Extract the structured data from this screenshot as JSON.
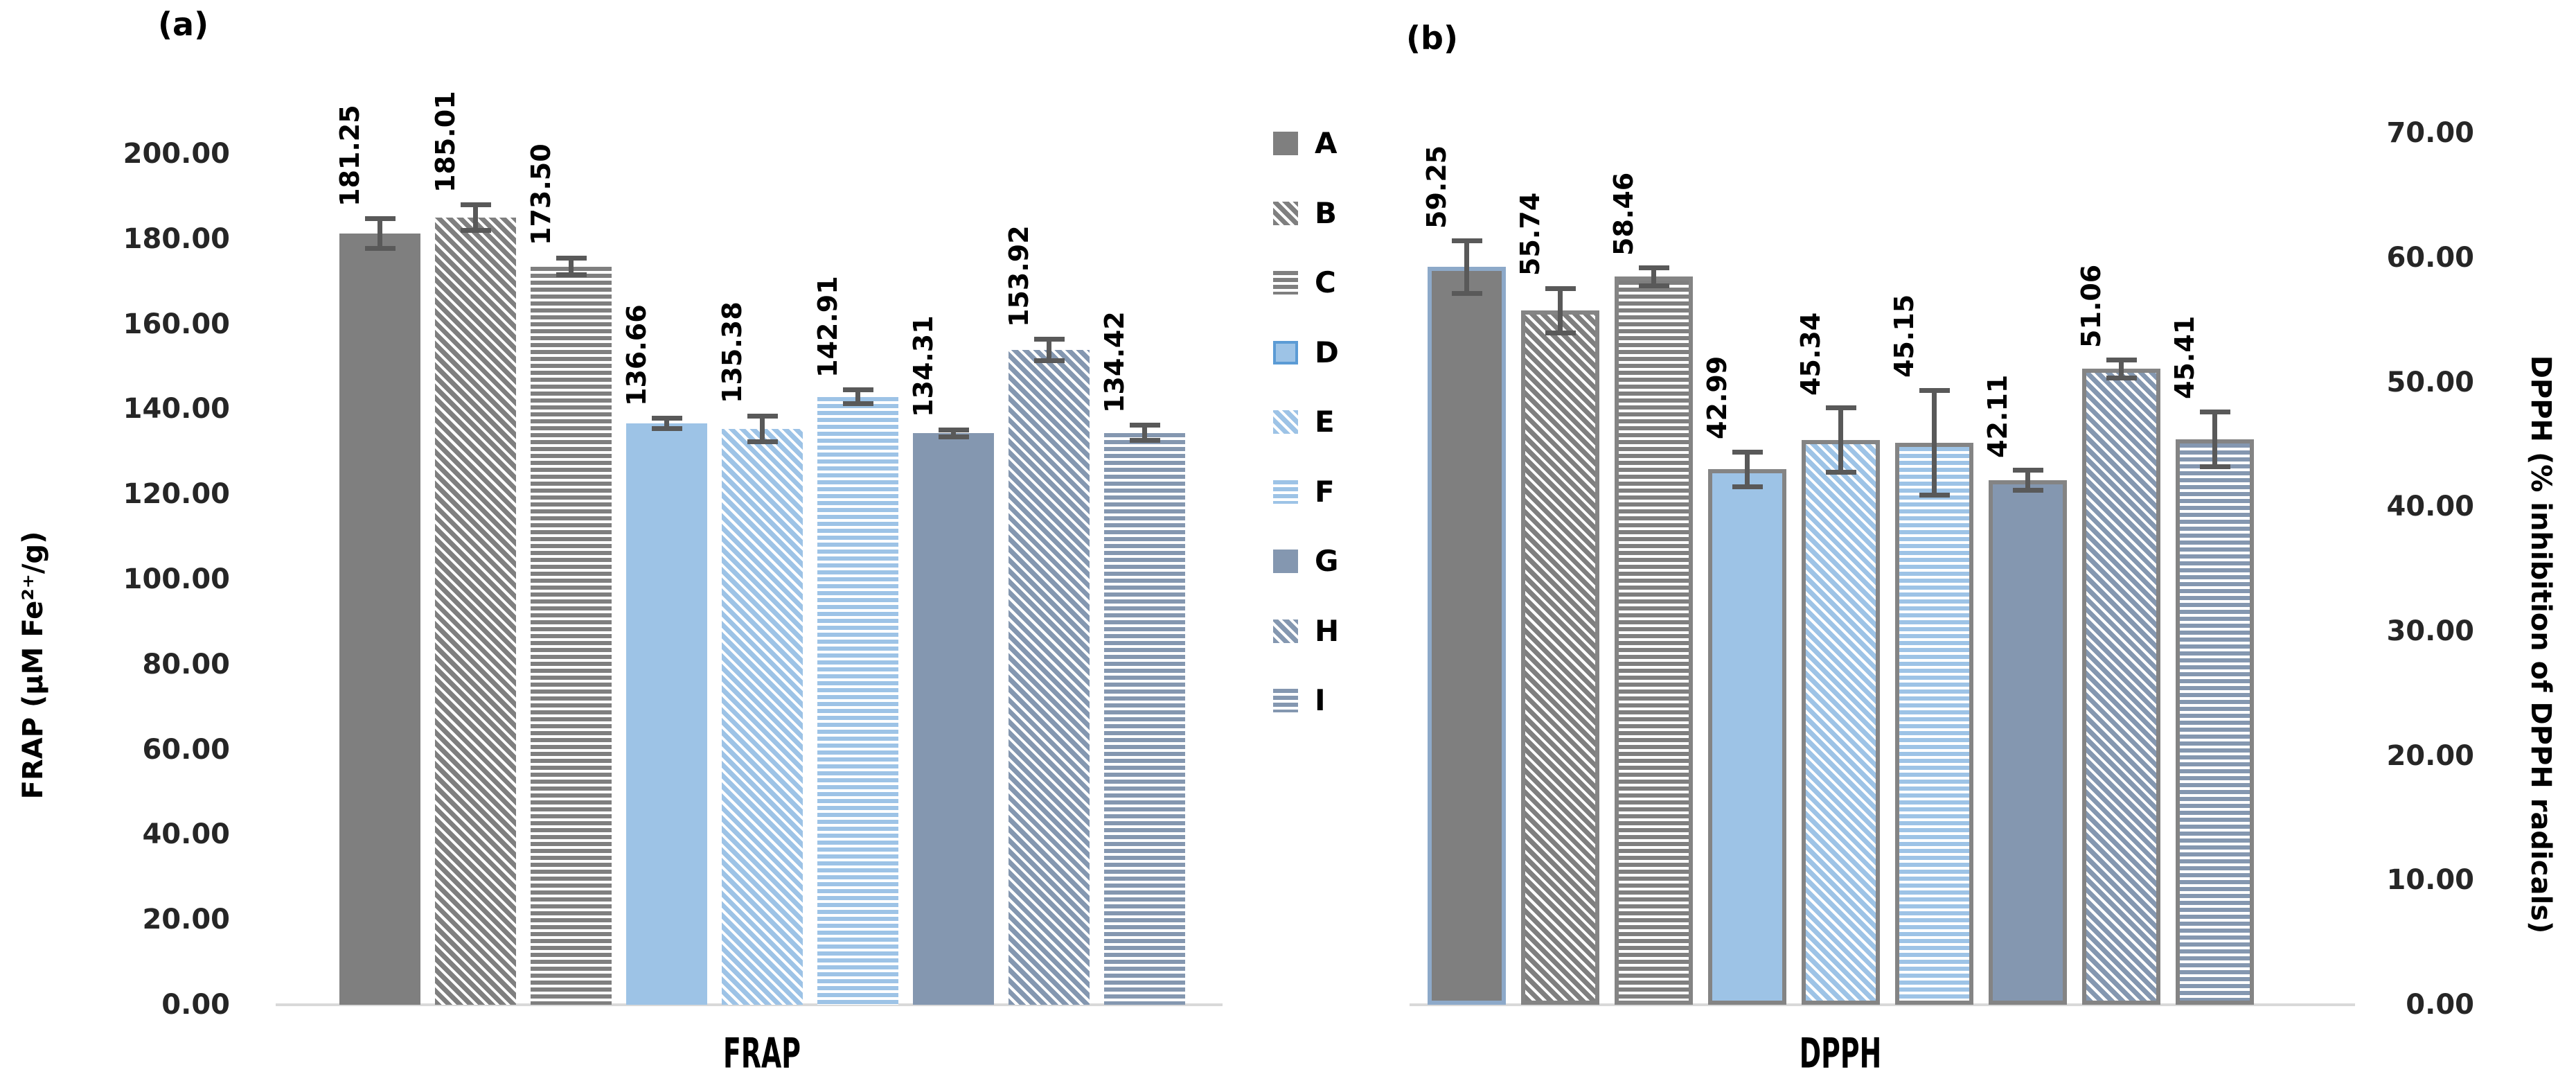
{
  "figure": {
    "panel_a_label": "(a)",
    "panel_b_label": "(b)",
    "left_axis_title": "FRAP (μM Fe²⁺/g)",
    "right_axis_title": "DPPH (% inhibition of DPPH radicals)",
    "colors": {
      "error_bar": "#595959",
      "axis_line": "#d9d9d9",
      "tick_text": "#262626",
      "gray_series": "#7f7f7f",
      "light_blue_series": "#9dc3e6",
      "blue_gray_series": "#8497b0"
    }
  },
  "legend": {
    "items": [
      {
        "label": "A",
        "pattern": "solid",
        "color": "#7f7f7f",
        "border": ""
      },
      {
        "label": "B",
        "pattern": "diagonal",
        "color": "#7f7f7f",
        "border": ""
      },
      {
        "label": "C",
        "pattern": "horizontal",
        "color": "#7f7f7f",
        "border": ""
      },
      {
        "label": "D",
        "pattern": "solid",
        "color": "#9dc3e6",
        "border": "#5b9bd5"
      },
      {
        "label": "E",
        "pattern": "diagonal",
        "color": "#9dc3e6",
        "border": ""
      },
      {
        "label": "F",
        "pattern": "horizontal",
        "color": "#9dc3e6",
        "border": ""
      },
      {
        "label": "G",
        "pattern": "solid",
        "color": "#8497b0",
        "border": ""
      },
      {
        "label": "H",
        "pattern": "diagonal",
        "color": "#8497b0",
        "border": ""
      },
      {
        "label": "I",
        "pattern": "horizontal",
        "color": "#8497b0",
        "border": ""
      }
    ]
  },
  "chart_data": [
    {
      "type": "bar",
      "panel": "a",
      "xlabel": "FRAP",
      "ylabel": "FRAP (μM Fe²⁺/g)",
      "ylim": [
        0,
        200
      ],
      "ytick_step": 20,
      "yticks": [
        {
          "value": 200,
          "label": "200.00"
        },
        {
          "value": 180,
          "label": "180.00"
        },
        {
          "value": 160,
          "label": "160.00"
        },
        {
          "value": 140,
          "label": "140.00"
        },
        {
          "value": 120,
          "label": "120.00"
        },
        {
          "value": 100,
          "label": "100.00"
        },
        {
          "value": 80,
          "label": "80.00"
        },
        {
          "value": 60,
          "label": "60.00"
        },
        {
          "value": 40,
          "label": "40.00"
        },
        {
          "value": 20,
          "label": "20.00"
        },
        {
          "value": 0,
          "label": "0.00"
        }
      ],
      "categories": [
        "A",
        "B",
        "C",
        "D",
        "E",
        "F",
        "G",
        "H",
        "I"
      ],
      "values": [
        181.25,
        185.01,
        173.5,
        136.66,
        135.38,
        142.91,
        134.31,
        153.92,
        134.42
      ],
      "value_labels": [
        "181.25",
        "185.01",
        "173.50",
        "136.66",
        "135.38",
        "142.91",
        "134.31",
        "153.92",
        "134.42"
      ],
      "errors": [
        3.5,
        3.0,
        2.0,
        1.2,
        3.0,
        1.6,
        0.8,
        2.5,
        1.8
      ],
      "bar_border_colors": [
        "",
        "",
        "",
        "",
        "",
        "",
        "",
        "",
        ""
      ],
      "grid": false,
      "legend_position": "right"
    },
    {
      "type": "bar",
      "panel": "b",
      "xlabel": "DPPH",
      "ylabel": "DPPH (% inhibition of DPPH radicals)",
      "ylim": [
        0,
        70
      ],
      "ytick_step": 10,
      "yticks": [
        {
          "value": 70,
          "label": "70.00"
        },
        {
          "value": 60,
          "label": "60.00"
        },
        {
          "value": 50,
          "label": "50.00"
        },
        {
          "value": 40,
          "label": "40.00"
        },
        {
          "value": 30,
          "label": "30.00"
        },
        {
          "value": 20,
          "label": "20.00"
        },
        {
          "value": 10,
          "label": "10.00"
        },
        {
          "value": 0,
          "label": "0.00"
        }
      ],
      "categories": [
        "A",
        "B",
        "C",
        "D",
        "E",
        "F",
        "G",
        "H",
        "I"
      ],
      "values": [
        59.25,
        55.74,
        58.46,
        42.99,
        45.34,
        45.15,
        42.11,
        51.06,
        45.41
      ],
      "value_labels": [
        "59.25",
        "55.74",
        "58.46",
        "42.99",
        "45.34",
        "45.15",
        "42.11",
        "51.06",
        "45.41"
      ],
      "errors": [
        2.1,
        1.8,
        0.7,
        1.4,
        2.6,
        4.2,
        0.8,
        0.7,
        2.2
      ],
      "bar_border_colors": [
        "#8da9c9",
        "#848484",
        "#848484",
        "#848484",
        "#848484",
        "#848484",
        "#848484",
        "#848484",
        "#848484"
      ],
      "grid": false,
      "legend_position": "shared"
    }
  ]
}
